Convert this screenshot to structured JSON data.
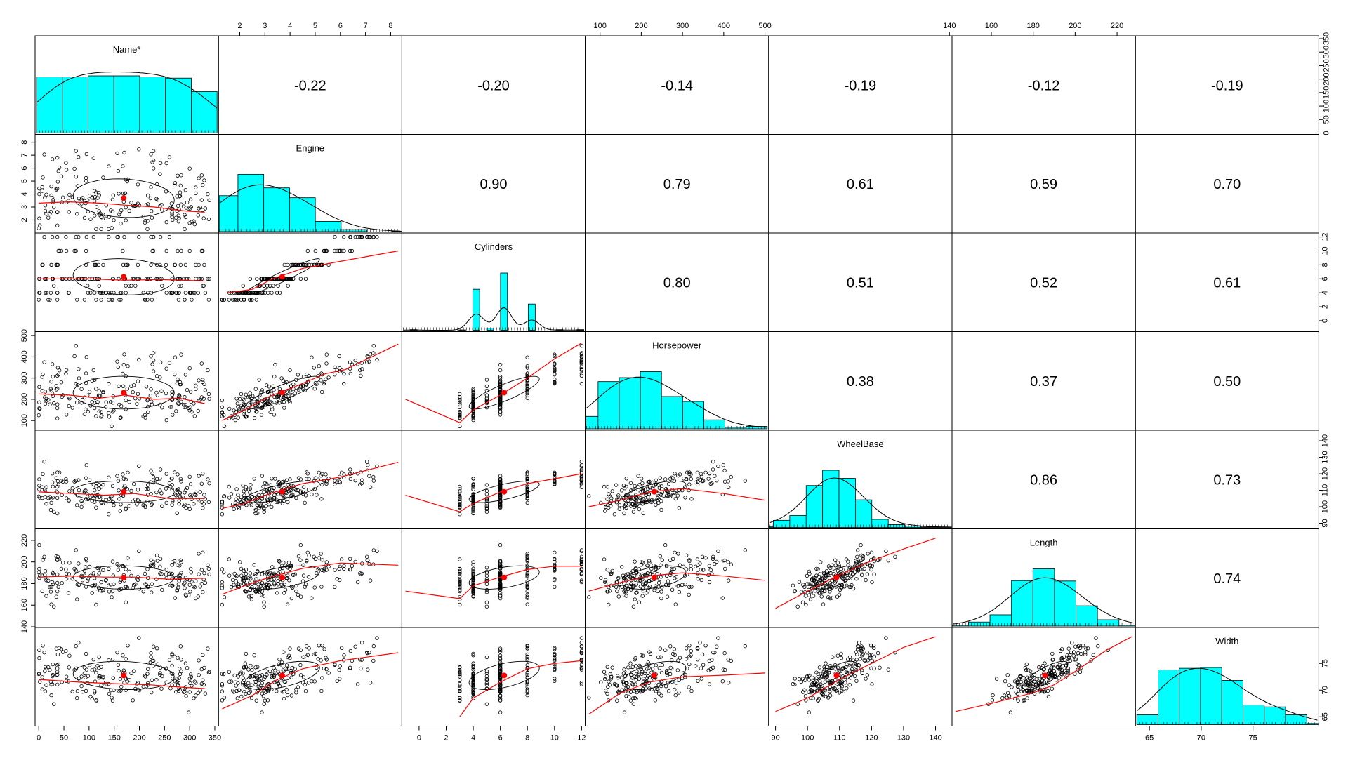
{
  "chart_data": {
    "type": "scatter",
    "title": "",
    "variables": [
      "Name*",
      "Engine",
      "Cylinders",
      "Horsepower",
      "WheelBase",
      "Length",
      "Width"
    ],
    "axis_ranges": {
      "Name*": [
        0,
        350
      ],
      "Engine": [
        1.3,
        8.3
      ],
      "Cylinders": [
        -1,
        12
      ],
      "Horsepower": [
        73,
        500
      ],
      "WheelBase": [
        89,
        144
      ],
      "Length": [
        143,
        227
      ],
      "Width": [
        64,
        81
      ]
    },
    "tick_labels": {
      "Name*": [
        "0",
        "50",
        "100",
        "150",
        "200",
        "250",
        "300",
        "350"
      ],
      "Engine": [
        "2",
        "3",
        "4",
        "5",
        "6",
        "7",
        "8"
      ],
      "Cylinders": [
        "0",
        "2",
        "4",
        "6",
        "8",
        "10",
        "12"
      ],
      "Horsepower": [
        "100",
        "200",
        "300",
        "400",
        "500"
      ],
      "WheelBase": [
        "90",
        "100",
        "110",
        "120",
        "130",
        "140"
      ],
      "Length": [
        "140",
        "160",
        "180",
        "200",
        "220"
      ],
      "Width": [
        "65",
        "70",
        "75"
      ]
    },
    "right_axis_histogram_count": [
      "0",
      "50",
      "100",
      "150",
      "200",
      "250",
      "300",
      "350"
    ],
    "correlations": [
      {
        "row": "Name*",
        "col": "Engine",
        "value": "-0.22"
      },
      {
        "row": "Name*",
        "col": "Cylinders",
        "value": "-0.20"
      },
      {
        "row": "Name*",
        "col": "Horsepower",
        "value": "-0.14"
      },
      {
        "row": "Name*",
        "col": "WheelBase",
        "value": "-0.19"
      },
      {
        "row": "Name*",
        "col": "Length",
        "value": "-0.12"
      },
      {
        "row": "Name*",
        "col": "Width",
        "value": "-0.19"
      },
      {
        "row": "Engine",
        "col": "Cylinders",
        "value": "0.90"
      },
      {
        "row": "Engine",
        "col": "Horsepower",
        "value": "0.79"
      },
      {
        "row": "Engine",
        "col": "WheelBase",
        "value": "0.61"
      },
      {
        "row": "Engine",
        "col": "Length",
        "value": "0.59"
      },
      {
        "row": "Engine",
        "col": "Width",
        "value": "0.70"
      },
      {
        "row": "Cylinders",
        "col": "Horsepower",
        "value": "0.80"
      },
      {
        "row": "Cylinders",
        "col": "WheelBase",
        "value": "0.51"
      },
      {
        "row": "Cylinders",
        "col": "Length",
        "value": "0.52"
      },
      {
        "row": "Cylinders",
        "col": "Width",
        "value": "0.61"
      },
      {
        "row": "Horsepower",
        "col": "WheelBase",
        "value": "0.38"
      },
      {
        "row": "Horsepower",
        "col": "Length",
        "value": "0.37"
      },
      {
        "row": "Horsepower",
        "col": "Width",
        "value": "0.50"
      },
      {
        "row": "WheelBase",
        "col": "Length",
        "value": "0.86"
      },
      {
        "row": "WheelBase",
        "col": "Width",
        "value": "0.73"
      },
      {
        "row": "Length",
        "col": "Width",
        "value": "0.74"
      }
    ],
    "histograms": {
      "Name*": {
        "edges": [
          0,
          50,
          100,
          150,
          200,
          250,
          300,
          350
        ],
        "counts": [
          50,
          50,
          51,
          51,
          50,
          49,
          37
        ]
      },
      "Engine": {
        "edges": [
          1,
          2,
          3,
          4,
          5,
          6,
          7,
          8,
          9
        ],
        "counts": [
          88,
          140,
          107,
          83,
          25,
          5,
          0,
          1
        ]
      },
      "Cylinders": {
        "edges": [
          -1,
          -0.5,
          0,
          0.5,
          1,
          1.5,
          2,
          2.5,
          3,
          3.5,
          4,
          4.5,
          5,
          5.5,
          6,
          6.5,
          7,
          7.5,
          8,
          8.5,
          9,
          9.5,
          10,
          10.5,
          11,
          11.5,
          12
        ],
        "counts": [
          0,
          2,
          0,
          0,
          0,
          0,
          0,
          0,
          1,
          0,
          136,
          0,
          7,
          0,
          190,
          0,
          0,
          0,
          87,
          0,
          0,
          0,
          2,
          0,
          0,
          2
        ]
      },
      "Horsepower": {
        "edges": [
          50,
          100,
          150,
          200,
          250,
          300,
          350,
          400,
          450,
          500
        ],
        "counts": [
          25,
          95,
          103,
          115,
          65,
          55,
          18,
          3,
          5
        ]
      },
      "WheelBase": {
        "edges": [
          85,
          90,
          95,
          100,
          105,
          110,
          115,
          120,
          125,
          130,
          135,
          140,
          145
        ],
        "counts": [
          2,
          15,
          25,
          88,
          120,
          103,
          58,
          17,
          6,
          3,
          1,
          1
        ]
      },
      "Length": {
        "edges": [
          140,
          150,
          160,
          170,
          180,
          190,
          200,
          210,
          220,
          230
        ],
        "counts": [
          2,
          9,
          25,
          101,
          127,
          100,
          45,
          14,
          2
        ]
      },
      "Width": {
        "edges": [
          64,
          66,
          68,
          70,
          72,
          74,
          76,
          78,
          80,
          82
        ],
        "counts": [
          25,
          139,
          143,
          145,
          112,
          50,
          45,
          25,
          3
        ]
      }
    },
    "trend": [
      {
        "x": "Name*",
        "y": "Engine",
        "points": [
          [
            0,
            3.3
          ],
          [
            60,
            3.4
          ],
          [
            120,
            3.3
          ],
          [
            170,
            3.15
          ],
          [
            230,
            3.0
          ],
          [
            290,
            2.7
          ],
          [
            330,
            2.6
          ]
        ]
      },
      {
        "x": "Name*",
        "y": "Cylinders",
        "points": [
          [
            0,
            6.0
          ],
          [
            100,
            6.0
          ],
          [
            170,
            5.8
          ],
          [
            240,
            5.9
          ],
          [
            330,
            5.7
          ]
        ]
      },
      {
        "x": "Name*",
        "y": "Horsepower",
        "points": [
          [
            0,
            225
          ],
          [
            60,
            220
          ],
          [
            120,
            205
          ],
          [
            170,
            220
          ],
          [
            230,
            200
          ],
          [
            280,
            205
          ],
          [
            330,
            180
          ]
        ]
      },
      {
        "x": "Name*",
        "y": "WheelBase",
        "points": [
          [
            0,
            109
          ],
          [
            70,
            108
          ],
          [
            130,
            107
          ],
          [
            190,
            108
          ],
          [
            260,
            105
          ],
          [
            330,
            105
          ]
        ]
      },
      {
        "x": "Name*",
        "y": "Length",
        "points": [
          [
            0,
            186
          ],
          [
            70,
            187
          ],
          [
            130,
            186
          ],
          [
            190,
            186
          ],
          [
            260,
            184
          ],
          [
            330,
            185
          ]
        ]
      },
      {
        "x": "Name*",
        "y": "Width",
        "points": [
          [
            0,
            72
          ],
          [
            80,
            71.5
          ],
          [
            150,
            71.2
          ],
          [
            220,
            71
          ],
          [
            290,
            70.5
          ],
          [
            330,
            70.3
          ]
        ]
      },
      {
        "x": "Engine",
        "y": "Cylinders",
        "points": [
          [
            1.5,
            4
          ],
          [
            2.5,
            4.5
          ],
          [
            3.3,
            6
          ],
          [
            4.5,
            7.5
          ],
          [
            6,
            8.5
          ],
          [
            8.3,
            10
          ]
        ]
      },
      {
        "x": "Engine",
        "y": "Horsepower",
        "points": [
          [
            1.3,
            100
          ],
          [
            2.2,
            150
          ],
          [
            3.2,
            215
          ],
          [
            4.2,
            260
          ],
          [
            5.4,
            320
          ],
          [
            6.2,
            340
          ],
          [
            8.3,
            460
          ]
        ]
      },
      {
        "x": "Engine",
        "y": "WheelBase",
        "points": [
          [
            1.3,
            99
          ],
          [
            2.2,
            102
          ],
          [
            3.2,
            108
          ],
          [
            4.5,
            114
          ],
          [
            6,
            118
          ],
          [
            8.3,
            127
          ]
        ]
      },
      {
        "x": "Engine",
        "y": "Length",
        "points": [
          [
            1.3,
            170
          ],
          [
            2.2,
            178
          ],
          [
            3.2,
            186
          ],
          [
            4.5,
            194
          ],
          [
            6,
            199
          ],
          [
            8.3,
            197
          ]
        ]
      },
      {
        "x": "Engine",
        "y": "Width",
        "points": [
          [
            1.3,
            66.5
          ],
          [
            2.5,
            69
          ],
          [
            3.5,
            72
          ],
          [
            4.5,
            74
          ],
          [
            6,
            75.5
          ],
          [
            8.3,
            77
          ]
        ]
      },
      {
        "x": "Cylinders",
        "y": "Horsepower",
        "points": [
          [
            -1,
            200
          ],
          [
            3,
            90
          ],
          [
            4,
            150
          ],
          [
            6,
            220
          ],
          [
            8,
            300
          ],
          [
            10,
            390
          ],
          [
            12,
            465
          ]
        ]
      },
      {
        "x": "Cylinders",
        "y": "WheelBase",
        "points": [
          [
            -1,
            107
          ],
          [
            3,
            97
          ],
          [
            4,
            102
          ],
          [
            6,
            109
          ],
          [
            8,
            114
          ],
          [
            10,
            117
          ],
          [
            12,
            120
          ]
        ]
      },
      {
        "x": "Cylinders",
        "y": "Length",
        "points": [
          [
            -1,
            173
          ],
          [
            3,
            166
          ],
          [
            4,
            178
          ],
          [
            6,
            186
          ],
          [
            8,
            193
          ],
          [
            10,
            196
          ],
          [
            12,
            196
          ]
        ]
      },
      {
        "x": "Cylinders",
        "y": "Width",
        "points": [
          [
            3,
            65
          ],
          [
            4,
            68.5
          ],
          [
            6,
            71.5
          ],
          [
            8,
            74
          ],
          [
            10,
            75
          ],
          [
            12,
            75.5
          ]
        ]
      },
      {
        "x": "Horsepower",
        "y": "WheelBase",
        "points": [
          [
            73,
            100
          ],
          [
            150,
            104
          ],
          [
            220,
            109
          ],
          [
            300,
            111
          ],
          [
            400,
            108
          ],
          [
            500,
            104
          ]
        ]
      },
      {
        "x": "Horsepower",
        "y": "Length",
        "points": [
          [
            73,
            173
          ],
          [
            150,
            181
          ],
          [
            220,
            187
          ],
          [
            300,
            190
          ],
          [
            400,
            187
          ],
          [
            500,
            183
          ]
        ]
      },
      {
        "x": "Horsepower",
        "y": "Width",
        "points": [
          [
            73,
            65.5
          ],
          [
            150,
            69.5
          ],
          [
            220,
            71.5
          ],
          [
            300,
            72.5
          ],
          [
            400,
            72.8
          ],
          [
            500,
            73.2
          ]
        ]
      },
      {
        "x": "WheelBase",
        "y": "Length",
        "points": [
          [
            90,
            157
          ],
          [
            100,
            173
          ],
          [
            110,
            188
          ],
          [
            120,
            201
          ],
          [
            130,
            212
          ],
          [
            140,
            222
          ]
        ]
      },
      {
        "x": "WheelBase",
        "y": "Width",
        "points": [
          [
            90,
            66
          ],
          [
            100,
            68.5
          ],
          [
            110,
            72
          ],
          [
            120,
            75
          ],
          [
            130,
            78
          ],
          [
            140,
            80
          ]
        ]
      },
      {
        "x": "Length",
        "y": "Width",
        "points": [
          [
            143,
            66
          ],
          [
            160,
            67.5
          ],
          [
            180,
            69.5
          ],
          [
            190,
            71
          ],
          [
            200,
            73.5
          ],
          [
            215,
            77.5
          ],
          [
            227,
            80
          ]
        ]
      }
    ],
    "grid": false,
    "legend": "none"
  }
}
